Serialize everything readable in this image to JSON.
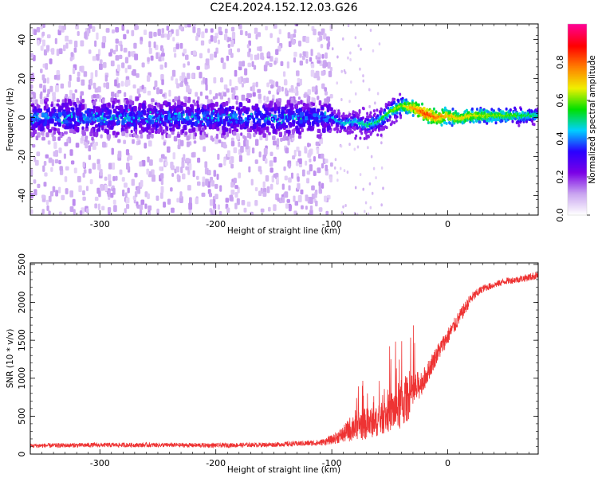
{
  "title": "C2E4.2024.152.12.03.G26",
  "chart_data": [
    {
      "type": "heatmap",
      "xlabel": "Height of straight line (km)",
      "ylabel": "Frequency (Hz)",
      "xlim": [
        -360,
        78
      ],
      "ylim": [
        -50,
        48
      ],
      "xticks": [
        -300,
        -200,
        -100,
        0
      ],
      "xtick_labels": [
        "-300",
        "-200",
        "-100",
        "0"
      ],
      "yticks": [
        -40,
        -20,
        0,
        20,
        40
      ],
      "ytick_labels": [
        "-40",
        "-20",
        "0",
        "20",
        "40"
      ],
      "colorbar": {
        "label": "Normalized spectral amplitude",
        "range": [
          0,
          1
        ],
        "ticks": [
          0.0,
          0.2,
          0.4,
          0.6,
          0.8
        ],
        "tick_labels": [
          "0.0",
          "0.2",
          "0.4",
          "0.6",
          "0.8"
        ],
        "colormap": [
          "#ffffff",
          "#c9a4f0",
          "#7a00e6",
          "#2a00ff",
          "#00d0ff",
          "#00e000",
          "#f0f000",
          "#ff7f00",
          "#ff0000",
          "#ff0090"
        ]
      },
      "ridge": {
        "x": [
          -360,
          -100,
          -90,
          -80,
          -70,
          -60,
          -50,
          -40,
          -30,
          -20,
          -10,
          0,
          10,
          20,
          40,
          60,
          78
        ],
        "y": [
          0,
          0,
          -3,
          -2,
          -4,
          -2,
          3,
          6,
          5,
          2,
          0,
          1,
          -0.5,
          1,
          1,
          1,
          1
        ]
      },
      "grid": false
    },
    {
      "type": "line",
      "xlabel": "Height of straight line (km)",
      "ylabel": "SNR (10 * v/v)",
      "xlim": [
        -360,
        78
      ],
      "ylim": [
        0,
        2520
      ],
      "xticks": [
        -300,
        -200,
        -100,
        0
      ],
      "xtick_labels": [
        "-300",
        "-200",
        "-100",
        "0"
      ],
      "yticks": [
        0,
        500,
        1000,
        1500,
        2000,
        2500
      ],
      "ytick_labels": [
        "0",
        "500",
        "1000",
        "1500",
        "2000",
        "2500"
      ],
      "color": "#ee3333",
      "series": [
        {
          "x": [
            -360,
            -300,
            -250,
            -200,
            -150,
            -110,
            -100,
            -90,
            -80,
            -70,
            -60,
            -50,
            -40,
            -30,
            -20,
            -10,
            0,
            10,
            20,
            30,
            40,
            50,
            60,
            70,
            78
          ],
          "y": [
            110,
            120,
            120,
            115,
            125,
            150,
            190,
            260,
            380,
            400,
            430,
            550,
            650,
            800,
            1000,
            1300,
            1550,
            1800,
            2050,
            2180,
            2230,
            2280,
            2300,
            2330,
            2360
          ],
          "noise": [
            60,
            60,
            60,
            60,
            60,
            80,
            120,
            220,
            420,
            420,
            380,
            520,
            700,
            500,
            300,
            250,
            220,
            200,
            150,
            100,
            90,
            90,
            90,
            100,
            110
          ]
        }
      ],
      "grid": false
    }
  ]
}
